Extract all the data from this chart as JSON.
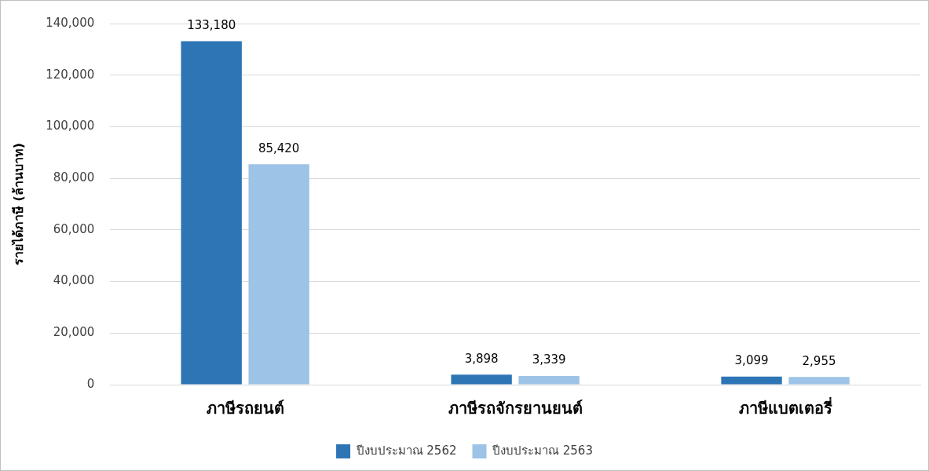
{
  "chart_data": {
    "type": "bar",
    "ylabel": "รายได้ภาษี (ล้านบาท)",
    "categories": [
      "ภาษีรถยนต์",
      "ภาษีรถจักรยานยนต์",
      "ภาษีแบตเตอรี่"
    ],
    "series": [
      {
        "name": "ปีงบประมาณ 2562",
        "color": "#2e75b6",
        "values": [
          133180,
          3898,
          3099
        ],
        "value_labels": [
          "133,180",
          "3,898",
          "3,099"
        ]
      },
      {
        "name": "ปีงบประมาณ 2563",
        "color": "#9dc3e6",
        "values": [
          85420,
          3339,
          2955
        ],
        "value_labels": [
          "85,420",
          "3,339",
          "2,955"
        ]
      }
    ],
    "ylim": [
      0,
      140000
    ],
    "yticks": [
      0,
      {
        "value": 20000,
        "label": "20,000"
      },
      {
        "value": 40000,
        "label": "40,000"
      },
      {
        "value": 60000,
        "label": "60,000"
      },
      {
        "value": 80000,
        "label": "80,000"
      },
      {
        "value": 100000,
        "label": "100,000"
      },
      {
        "value": 120000,
        "label": "120,000"
      },
      {
        "value": 140000,
        "label": "140,000"
      }
    ],
    "grid": "y",
    "legend": "bottom"
  }
}
